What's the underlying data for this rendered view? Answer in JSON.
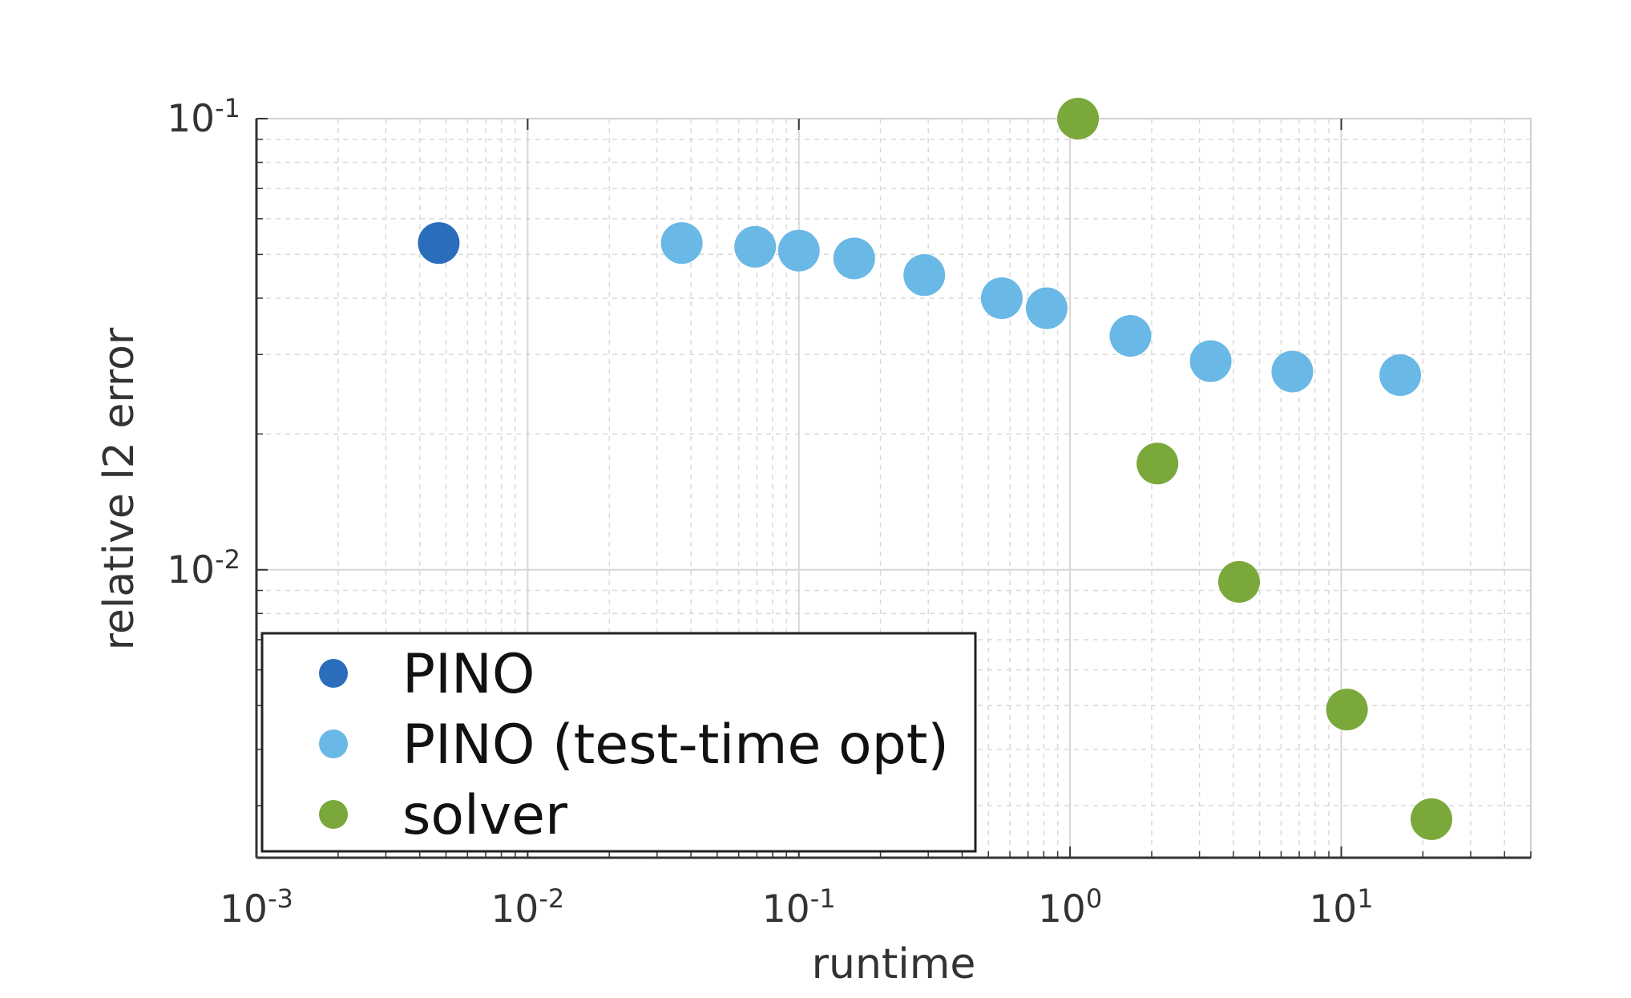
{
  "chart_data": {
    "type": "scatter",
    "xlabel": "runtime",
    "ylabel": "relative l2 error",
    "x_scale": "log",
    "y_scale": "log",
    "xlim": [
      0.001,
      50
    ],
    "ylim": [
      0.0023,
      0.1
    ],
    "x_ticks": [
      {
        "base": "10",
        "exp": "-3",
        "value": 0.001
      },
      {
        "base": "10",
        "exp": "-2",
        "value": 0.01
      },
      {
        "base": "10",
        "exp": "-1",
        "value": 0.1
      },
      {
        "base": "10",
        "exp": "0",
        "value": 1
      },
      {
        "base": "10",
        "exp": "1",
        "value": 10
      }
    ],
    "y_ticks": [
      {
        "base": "10",
        "exp": "-1",
        "value": 0.1
      },
      {
        "base": "10",
        "exp": "-2",
        "value": 0.01
      }
    ],
    "grid": true,
    "minor_grid": true,
    "legend_position": "bottom-left",
    "series": [
      {
        "name": "PINO",
        "color": "#2a6ebb",
        "points": [
          [
            0.0047,
            0.053
          ]
        ]
      },
      {
        "name": "PINO (test-time opt)",
        "color": "#6ab8e6",
        "points": [
          [
            0.037,
            0.053
          ],
          [
            0.069,
            0.052
          ],
          [
            0.1,
            0.051
          ],
          [
            0.16,
            0.049
          ],
          [
            0.29,
            0.045
          ],
          [
            0.56,
            0.04
          ],
          [
            0.82,
            0.038
          ],
          [
            1.67,
            0.033
          ],
          [
            3.3,
            0.029
          ],
          [
            6.6,
            0.0275
          ],
          [
            16.5,
            0.027
          ]
        ]
      },
      {
        "name": "solver",
        "color": "#7aa83a",
        "points": [
          [
            1.07,
            0.1
          ],
          [
            2.1,
            0.0172
          ],
          [
            4.2,
            0.0094
          ],
          [
            10.5,
            0.0049
          ],
          [
            21.5,
            0.0028
          ]
        ]
      }
    ]
  }
}
